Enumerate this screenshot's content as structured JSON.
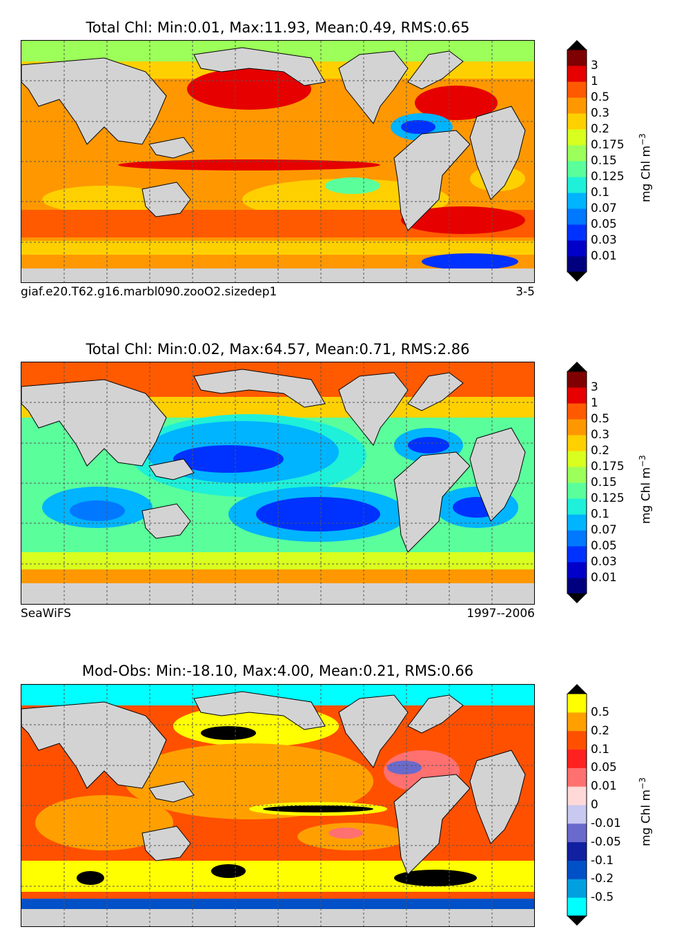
{
  "panels": [
    {
      "title": "Total Chl: Min:0.01, Max:11.93, Mean:0.49, RMS:0.65",
      "left_label": "giaf.e20.T62.g16.marbl090.zooO2.sizedep1",
      "right_label": "3-5",
      "colorbar": {
        "unit": "mg Chl m",
        "unit_exp": "−3",
        "colors": [
          "#00007f",
          "#0000c8",
          "#0032ff",
          "#0078ff",
          "#00b4ff",
          "#1ef0d9",
          "#5aff9c",
          "#9cff5a",
          "#d9ff1e",
          "#ffd000",
          "#ff9800",
          "#ff5a00",
          "#e60000",
          "#7f0000"
        ],
        "tick_labels": [
          "0.01",
          "0.03",
          "0.05",
          "0.07",
          "0.1",
          "0.125",
          "0.15",
          "0.175",
          "0.2",
          "0.3",
          "0.5",
          "1",
          "3"
        ]
      }
    },
    {
      "title": "Total Chl: Min:0.02, Max:64.57, Mean:0.71, RMS:2.86",
      "left_label": "SeaWiFS",
      "right_label": "1997--2006",
      "colorbar": {
        "unit": "mg Chl m",
        "unit_exp": "−3",
        "colors": [
          "#00007f",
          "#0000c8",
          "#0032ff",
          "#0078ff",
          "#00b4ff",
          "#1ef0d9",
          "#5aff9c",
          "#9cff5a",
          "#d9ff1e",
          "#ffd000",
          "#ff9800",
          "#ff5a00",
          "#e60000",
          "#7f0000"
        ],
        "tick_labels": [
          "0.01",
          "0.03",
          "0.05",
          "0.07",
          "0.1",
          "0.125",
          "0.15",
          "0.175",
          "0.2",
          "0.3",
          "0.5",
          "1",
          "3"
        ]
      }
    },
    {
      "title": "Mod-Obs: Min:-18.10, Max:4.00, Mean:0.21, RMS:0.66",
      "left_label": "",
      "right_label": "",
      "colorbar": {
        "unit": "mg Chl m",
        "unit_exp": "−3",
        "colors": [
          "#00ffff",
          "#00a0e0",
          "#0050c8",
          "#1020a0",
          "#6a6acc",
          "#c8c8f0",
          "#ffd8d8",
          "#ff7070",
          "#ff2020",
          "#ff5000",
          "#ffa000",
          "#ffff00"
        ],
        "tick_labels": [
          "-0.5",
          "-0.2",
          "-0.1",
          "-0.05",
          "-0.01",
          "0",
          "0.01",
          "0.05",
          "0.1",
          "0.2",
          "0.5"
        ]
      }
    }
  ]
}
